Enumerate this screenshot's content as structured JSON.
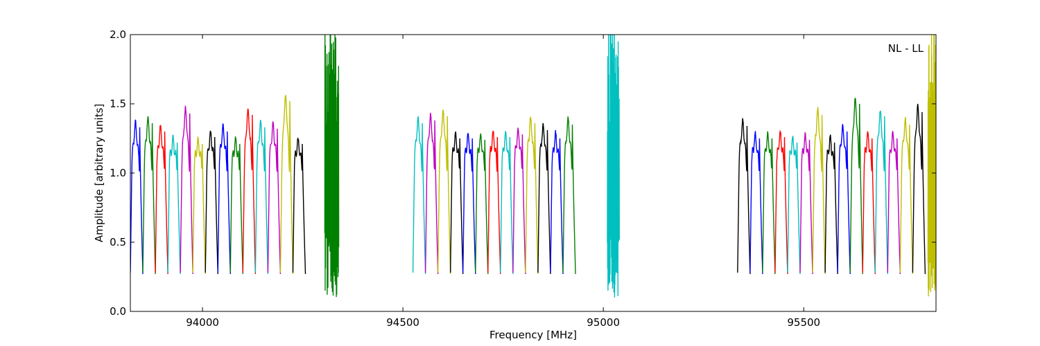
{
  "chart_data": {
    "type": "line",
    "title": "",
    "xlabel": "Frequency [MHz]",
    "ylabel": "Amplitude [arbitrary units]",
    "xlim": [
      93820,
      95830
    ],
    "ylim": [
      0.0,
      2.0
    ],
    "xticks": [
      94000,
      94500,
      95000,
      95500
    ],
    "xtick_labels": [
      "94000",
      "94500",
      "95000",
      "95500"
    ],
    "yticks": [
      0.0,
      0.5,
      1.0,
      1.5,
      2.0
    ],
    "ytick_labels": [
      "0.0",
      "0.5",
      "1.0",
      "1.5",
      "2.0"
    ],
    "grid": false,
    "annotation": "NL - LL",
    "colors": [
      "#0000ff",
      "#008000",
      "#ff0000",
      "#00bfbf",
      "#bf00bf",
      "#bfbf00",
      "#000000"
    ],
    "bands": [
      {
        "x_start": 93820,
        "channel_width": 31.2,
        "peaks": [
          1.33,
          1.36,
          1.3,
          1.22,
          1.43,
          1.21,
          1.26,
          1.3,
          1.21,
          1.42,
          1.33,
          1.32,
          1.52,
          1.21
        ]
      },
      {
        "x_start": 94525,
        "channel_width": 31.2,
        "peaks": [
          1.36,
          1.38,
          1.41,
          1.25,
          1.25,
          1.24,
          1.26,
          1.26,
          1.28,
          1.36,
          1.31,
          1.25,
          1.35
        ]
      },
      {
        "x_start": 95335,
        "channel_width": 31.2,
        "peaks": [
          1.34,
          1.25,
          1.25,
          1.26,
          1.22,
          1.24,
          1.42,
          1.22,
          1.3,
          1.5,
          1.25,
          1.41,
          1.25,
          1.35,
          1.44
        ]
      }
    ],
    "noisy_segments": [
      {
        "x_range": [
          94305,
          94340
        ],
        "color": "#008000",
        "min": 0.1,
        "max": 2.0
      },
      {
        "x_range": [
          95010,
          95040
        ],
        "color": "#00bfbf",
        "min": 0.1,
        "max": 2.0
      },
      {
        "x_range": [
          95810,
          95830
        ],
        "color": "#bfbf00",
        "min": 0.1,
        "max": 2.0
      }
    ]
  }
}
